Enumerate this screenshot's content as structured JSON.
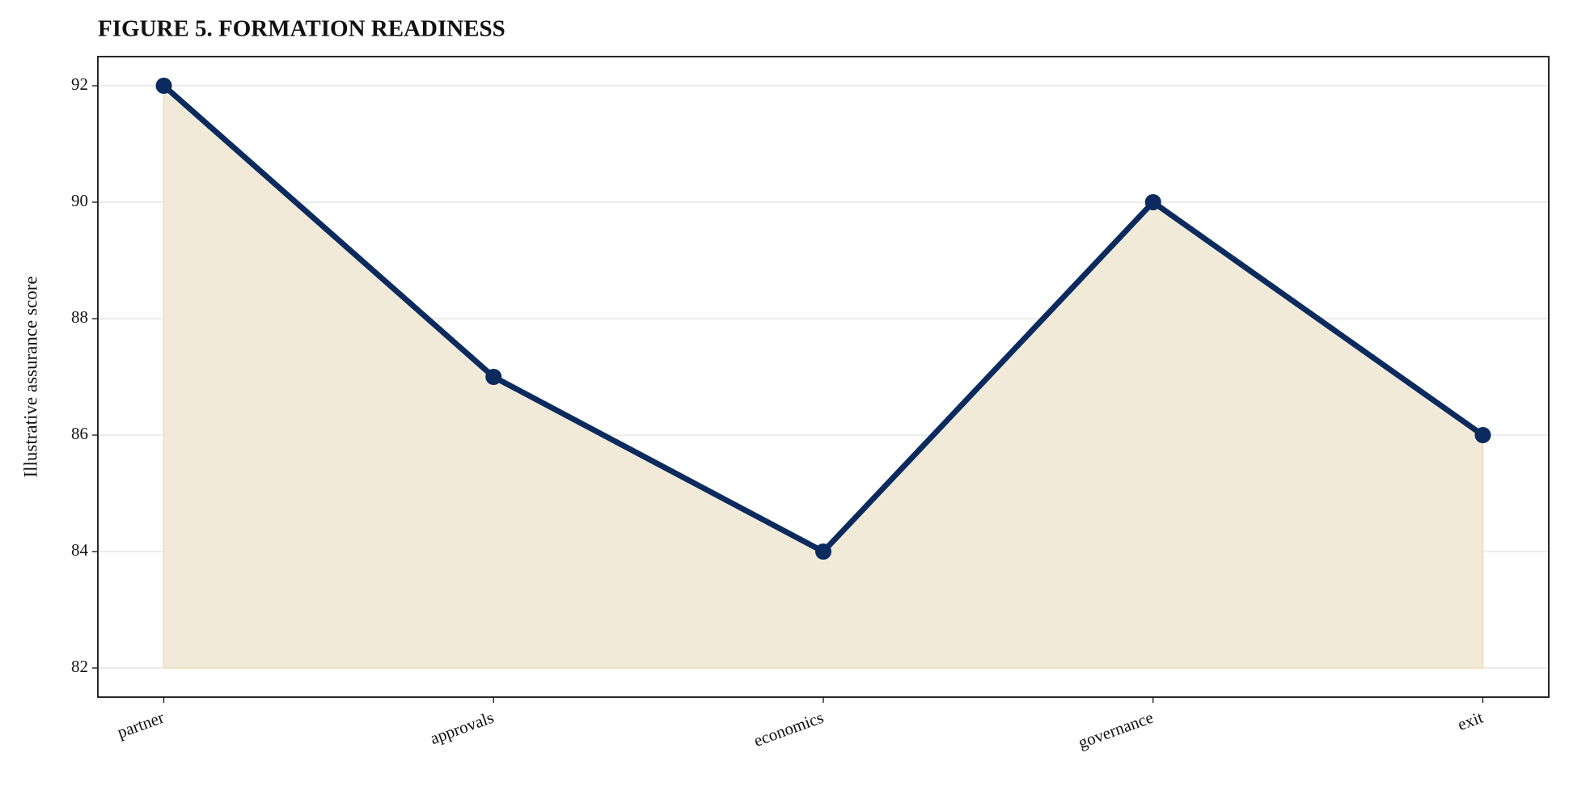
{
  "chart_data": {
    "type": "line",
    "title": "FIGURE 5. FORMATION READINESS",
    "ylabel": "Illustrative assurance score",
    "categories": [
      "partner",
      "approvals",
      "economics",
      "governance",
      "exit"
    ],
    "values": [
      92,
      87,
      84,
      90,
      86
    ],
    "color": "#0b2b5e",
    "fill_color": "#f2ead9",
    "ylim": [
      81.5,
      92.5
    ],
    "yticks": [
      82,
      84,
      86,
      88,
      90,
      92
    ],
    "grid": true
  }
}
